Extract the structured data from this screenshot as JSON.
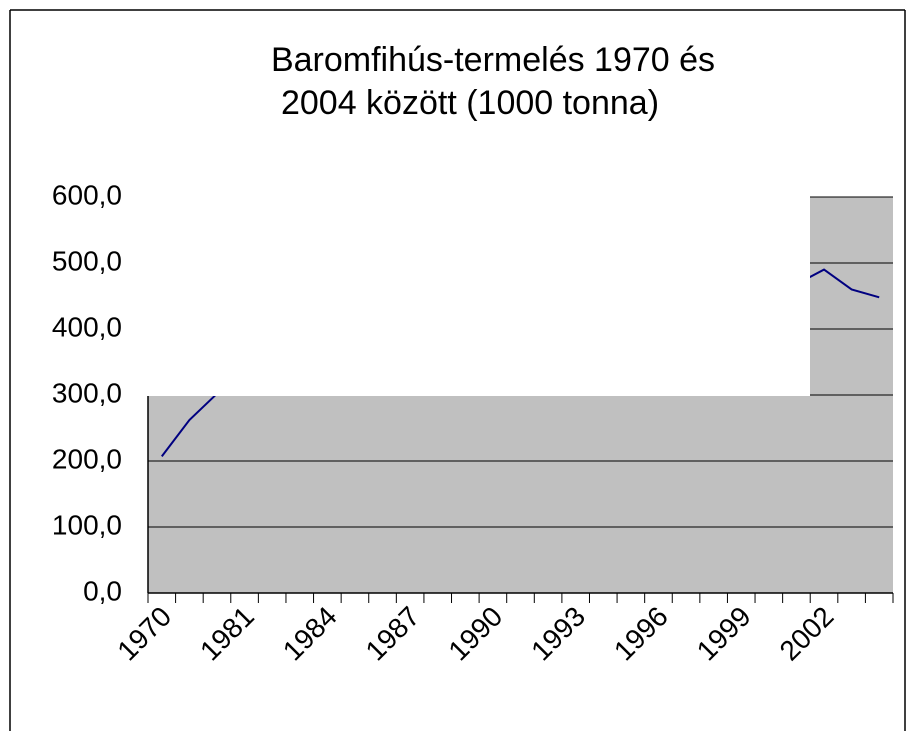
{
  "chart_data": {
    "type": "line",
    "title": [
      "Baromfihús-termelés 1970 és",
      "2004 között (1000 tonna)"
    ],
    "categories": [
      "1970",
      null,
      null,
      "1981",
      null,
      null,
      "1984",
      null,
      null,
      "1987",
      null,
      null,
      "1990",
      null,
      null,
      "1993",
      null,
      null,
      "1996",
      null,
      null,
      "1999",
      null,
      null,
      "2002",
      null,
      null
    ],
    "series": [
      {
        "name": "Baromfihús",
        "color": "#000080",
        "values": [
          207,
          262,
          302,
          null,
          null,
          null,
          null,
          null,
          null,
          null,
          null,
          null,
          null,
          null,
          null,
          null,
          null,
          null,
          null,
          null,
          null,
          null,
          null,
          468,
          490,
          460,
          448
        ]
      }
    ],
    "ylim": [
      0,
      600
    ],
    "yticks": [
      {
        "value": 0,
        "label": "0,0"
      },
      {
        "value": 100,
        "label": "100,0"
      },
      {
        "value": 200,
        "label": "200,0"
      },
      {
        "value": 300,
        "label": "300,0"
      },
      {
        "value": 400,
        "label": "400,0"
      },
      {
        "value": 500,
        "label": "500,0"
      },
      {
        "value": 600,
        "label": "600,0"
      }
    ],
    "grid": true,
    "plot_color": "#c0c0c0"
  }
}
